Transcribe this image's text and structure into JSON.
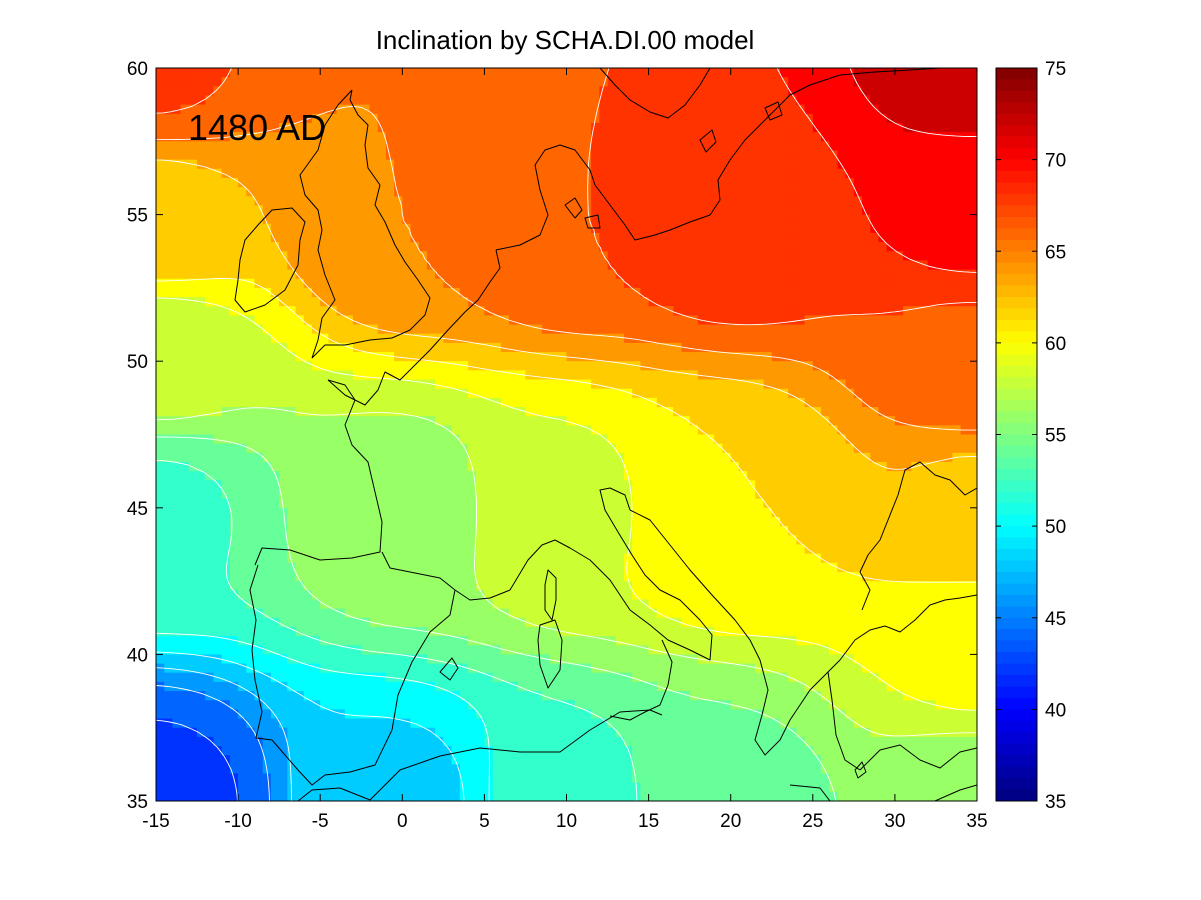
{
  "chart_data": {
    "type": "heatmap",
    "title": "Inclination by SCHA.DI.00 model",
    "annotation": "1480 AD",
    "xlabel": "",
    "ylabel": "",
    "xlim": [
      -15,
      35
    ],
    "ylim": [
      35,
      60
    ],
    "x_ticks": [
      "-15",
      "-10",
      "-5",
      "0",
      "5",
      "10",
      "15",
      "20",
      "25",
      "30",
      "35"
    ],
    "y_ticks": [
      "35",
      "40",
      "45",
      "50",
      "55",
      "60"
    ],
    "colorbar": {
      "range": [
        35,
        75
      ],
      "ticks": [
        "35",
        "40",
        "45",
        "50",
        "55",
        "60",
        "65",
        "70",
        "75"
      ],
      "colormap": "jet"
    },
    "contour_interval": 2,
    "contour_line_color": "#ffffff",
    "coastline_color": "#000000",
    "grid": false,
    "field_samples": [
      {
        "x": -15,
        "y": 35,
        "value": 42.5
      },
      {
        "x": -15,
        "y": 45,
        "value": 52.7
      },
      {
        "x": -15,
        "y": 50,
        "value": 57.8
      },
      {
        "x": -15,
        "y": 55,
        "value": 62.5
      },
      {
        "x": -15,
        "y": 60,
        "value": 67.2
      },
      {
        "x": 0,
        "y": 35,
        "value": 48.5
      },
      {
        "x": 0,
        "y": 45,
        "value": 56.2
      },
      {
        "x": 0,
        "y": 55,
        "value": 65.0
      },
      {
        "x": 10,
        "y": 35,
        "value": 52.5
      },
      {
        "x": 10,
        "y": 45,
        "value": 58.6
      },
      {
        "x": 10,
        "y": 55,
        "value": 67.0
      },
      {
        "x": 20,
        "y": 35,
        "value": 54.5
      },
      {
        "x": 20,
        "y": 45,
        "value": 61.0
      },
      {
        "x": 20,
        "y": 55,
        "value": 68.5
      },
      {
        "x": 35,
        "y": 35,
        "value": 55.5
      },
      {
        "x": 35,
        "y": 40,
        "value": 59.5
      },
      {
        "x": 35,
        "y": 45,
        "value": 62.7
      },
      {
        "x": 35,
        "y": 50,
        "value": 66.5
      },
      {
        "x": 35,
        "y": 55,
        "value": 69.5
      },
      {
        "x": 35,
        "y": 60,
        "value": 72.0
      }
    ]
  }
}
